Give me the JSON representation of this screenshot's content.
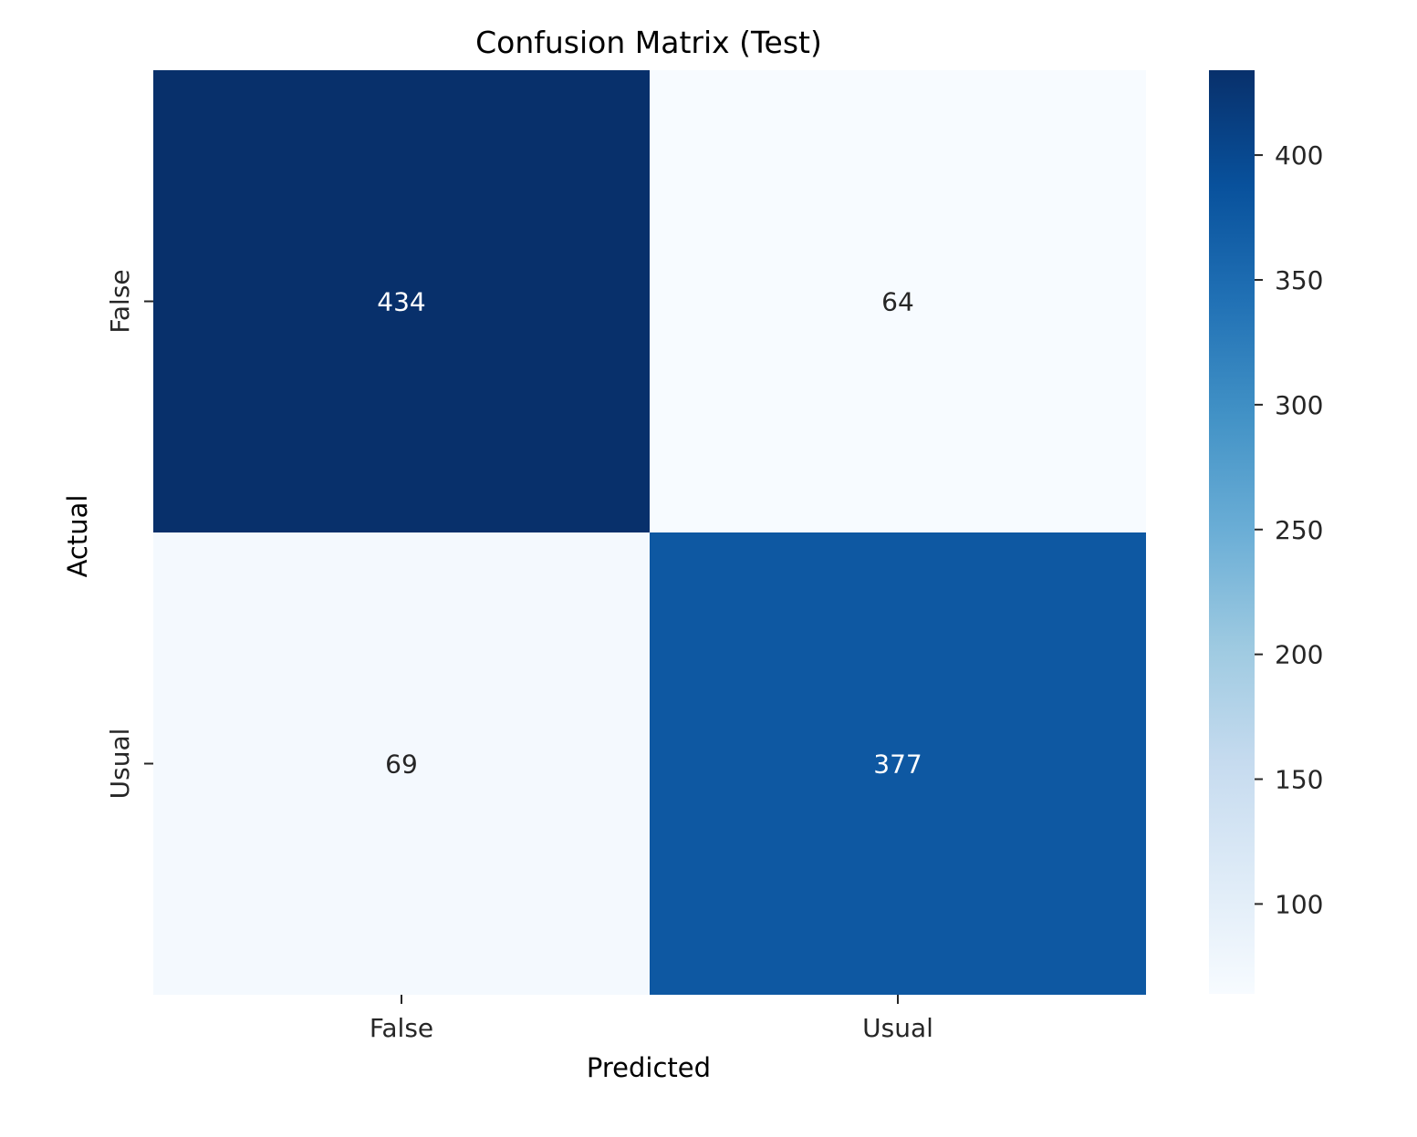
{
  "chart_data": {
    "type": "heatmap",
    "title": "Confusion Matrix (Test)",
    "xlabel": "Predicted",
    "ylabel": "Actual",
    "x_categories": [
      "False",
      "Usual"
    ],
    "y_categories": [
      "False",
      "Usual"
    ],
    "values": [
      [
        434,
        64
      ],
      [
        69,
        377
      ]
    ],
    "colormap": "Blues",
    "color_range": [
      64,
      434
    ],
    "colorbar_ticks": [
      100,
      150,
      200,
      250,
      300,
      350,
      400
    ],
    "colorbar_ticks_text": [
      "100",
      "150",
      "200",
      "250",
      "300",
      "350",
      "400"
    ],
    "grid": false,
    "annotation_light_color": "#ffffff",
    "annotation_dark_color": "#262626"
  }
}
